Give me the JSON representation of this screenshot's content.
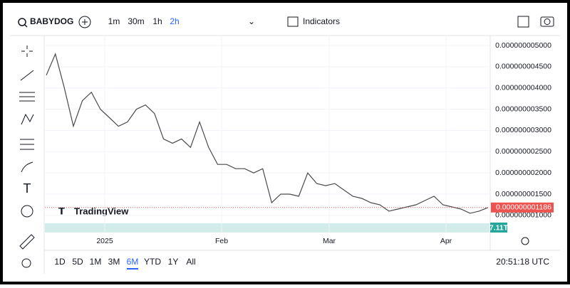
{
  "toolbar": {
    "symbol": "BABYDOG",
    "intervals": [
      "1m",
      "30m",
      "1h",
      "2h"
    ],
    "active_interval": 3,
    "indicators": "Indicators"
  },
  "chart": {
    "type": "line",
    "color": "#4a4a4a",
    "ylim": [
      5.8e-10,
      5.234e-09
    ],
    "yticks": [
      {
        "value": 5e-09,
        "label": "0.000000005000"
      },
      {
        "value": 4.5e-09,
        "label": "0.000000004500"
      },
      {
        "value": 4e-09,
        "label": "0.000000004000"
      },
      {
        "value": 3.5e-09,
        "label": "0.000000003500"
      },
      {
        "value": 3e-09,
        "label": "0.000000003000"
      },
      {
        "value": 2.5e-09,
        "label": "0.000000002500"
      },
      {
        "value": 2e-09,
        "label": "0.000000002000"
      },
      {
        "value": 1.5e-09,
        "label": "0.000000001500"
      },
      {
        "value": 1e-09,
        "label": "0.000000001000"
      }
    ],
    "x_labels": [
      "2025",
      "Feb",
      "Mar",
      "Apr"
    ],
    "close": [
      4.3e-09,
      4.8e-09,
      4e-09,
      3.1e-09,
      3.7e-09,
      3.9e-09,
      3.5e-09,
      3.3e-09,
      3.1e-09,
      3.2e-09,
      3.5e-09,
      3.6e-09,
      3.4e-09,
      2.8e-09,
      2.7e-09,
      2.8e-09,
      2.6e-09,
      3.2e-09,
      2.6e-09,
      2.2e-09,
      2.2e-09,
      2.1e-09,
      2.1e-09,
      2e-09,
      2.1e-09,
      1.3e-09,
      1.5e-09,
      1.5e-09,
      1.45e-09,
      2e-09,
      1.75e-09,
      1.7e-09,
      1.75e-09,
      1.6e-09,
      1.45e-09,
      1.4e-09,
      1.3e-09,
      1.25e-09,
      1.1e-09,
      1.15e-09,
      1.2e-09,
      1.25e-09,
      1.35e-09,
      1.45e-09,
      1.25e-09,
      1.2e-09,
      1.15e-09,
      1.05e-09,
      1.1e-09,
      1.186e-09
    ],
    "last_price": {
      "value": 1.186e-09,
      "label": "0.000000001186"
    },
    "volume_label": "7.11T",
    "logo": "TradingView"
  },
  "ranges": {
    "items": [
      "1D",
      "5D",
      "1M",
      "3M",
      "6M",
      "YTD",
      "1Y",
      "All"
    ],
    "active": 4
  },
  "clock": "20:51:18 UTC"
}
